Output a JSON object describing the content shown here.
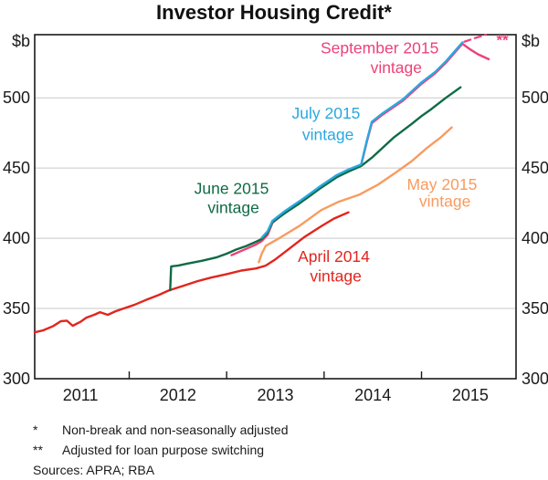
{
  "title": "Investor Housing Credit*",
  "chart_data": {
    "type": "line",
    "title": "Investor Housing Credit*",
    "unit_left": "$b",
    "unit_right": "$b",
    "x_domain": [
      2011.03,
      2015.97
    ],
    "y_domain": [
      300,
      545
    ],
    "y_ticks": [
      300,
      350,
      400,
      450,
      500
    ],
    "x_year_ticks": [
      2012,
      2013,
      2014,
      2015
    ],
    "x_year_labels": [
      "2011",
      "2012",
      "2013",
      "2014",
      "2015"
    ],
    "grid": true,
    "colors": {
      "frame": "#1a1a1a",
      "grid": "#c8c8c8",
      "red": "#e2251d",
      "orange": "#f89b5f",
      "green": "#0f6b45",
      "blue": "#29a8e0",
      "pink": "#ee4178"
    },
    "series": [
      {
        "id": "april-2014-vintage",
        "name": "April 2014 vintage",
        "color": "#e2251d",
        "points": [
          [
            2011.03,
            333
          ],
          [
            2011.12,
            334.5
          ],
          [
            2011.22,
            337.5
          ],
          [
            2011.3,
            341
          ],
          [
            2011.36,
            341.3
          ],
          [
            2011.42,
            337.7
          ],
          [
            2011.5,
            340.5
          ],
          [
            2011.56,
            343.5
          ],
          [
            2011.64,
            345.5
          ],
          [
            2011.7,
            347.4
          ],
          [
            2011.78,
            345.5
          ],
          [
            2011.86,
            348
          ],
          [
            2011.94,
            350
          ],
          [
            2012.05,
            352.5
          ],
          [
            2012.17,
            356
          ],
          [
            2012.3,
            359.5
          ],
          [
            2012.41,
            363
          ],
          [
            2012.55,
            366
          ],
          [
            2012.7,
            369.5
          ],
          [
            2012.84,
            372
          ],
          [
            2013.0,
            374.5
          ],
          [
            2013.15,
            377
          ],
          [
            2013.3,
            378.5
          ],
          [
            2013.4,
            380.5
          ],
          [
            2013.5,
            385
          ],
          [
            2013.65,
            393
          ],
          [
            2013.8,
            401
          ],
          [
            2013.97,
            408.5
          ],
          [
            2014.1,
            414
          ],
          [
            2014.25,
            418.5
          ]
        ]
      },
      {
        "id": "september-2015-vintage",
        "name": "September 2015 vintage",
        "color": "#ee4178",
        "points": [
          [
            2013.05,
            388
          ],
          [
            2013.2,
            392.5
          ],
          [
            2013.3,
            395.5
          ],
          [
            2013.36,
            398
          ],
          [
            2013.42,
            402.5
          ],
          [
            2013.47,
            411
          ],
          [
            2013.6,
            418.5
          ],
          [
            2013.75,
            425.5
          ],
          [
            2013.85,
            430.5
          ],
          [
            2013.97,
            436.5
          ],
          [
            2014.13,
            444
          ],
          [
            2014.25,
            448
          ],
          [
            2014.38,
            452
          ],
          [
            2014.44,
            469
          ],
          [
            2014.49,
            482
          ],
          [
            2014.6,
            488
          ],
          [
            2014.81,
            498
          ],
          [
            2015.0,
            510
          ],
          [
            2015.14,
            517.5
          ],
          [
            2015.25,
            525
          ],
          [
            2015.35,
            533
          ],
          [
            2015.42,
            538.5
          ],
          [
            2015.5,
            534.5
          ],
          [
            2015.58,
            531
          ],
          [
            2015.69,
            527.5
          ]
        ]
      },
      {
        "id": "june-2015-vintage",
        "name": "June 2015 vintage",
        "color": "#0f6b45",
        "points": [
          [
            2012.42,
            363
          ],
          [
            2012.43,
            380
          ],
          [
            2012.5,
            380.5
          ],
          [
            2012.6,
            382
          ],
          [
            2012.75,
            384
          ],
          [
            2012.9,
            386.5
          ],
          [
            2013.0,
            389
          ],
          [
            2013.1,
            392
          ],
          [
            2013.2,
            394.5
          ],
          [
            2013.3,
            397.5
          ],
          [
            2013.36,
            399.5
          ],
          [
            2013.42,
            404
          ],
          [
            2013.47,
            411.5
          ],
          [
            2013.6,
            418
          ],
          [
            2013.75,
            425
          ],
          [
            2013.85,
            430
          ],
          [
            2013.97,
            436
          ],
          [
            2014.13,
            443.5
          ],
          [
            2014.25,
            447.5
          ],
          [
            2014.38,
            451.5
          ],
          [
            2014.5,
            458
          ],
          [
            2014.72,
            472
          ],
          [
            2014.9,
            481.5
          ],
          [
            2015.0,
            487
          ],
          [
            2015.1,
            492
          ],
          [
            2015.25,
            500
          ],
          [
            2015.4,
            507.5
          ]
        ]
      },
      {
        "id": "may-2015-vintage",
        "name": "May 2015 vintage",
        "color": "#f89b5f",
        "points": [
          [
            2013.33,
            383
          ],
          [
            2013.36,
            389
          ],
          [
            2013.4,
            394.5
          ],
          [
            2013.55,
            400.5
          ],
          [
            2013.75,
            409
          ],
          [
            2013.97,
            420
          ],
          [
            2014.15,
            426
          ],
          [
            2014.36,
            431
          ],
          [
            2014.55,
            438
          ],
          [
            2014.72,
            446
          ],
          [
            2014.9,
            455
          ],
          [
            2015.05,
            464
          ],
          [
            2015.2,
            472
          ],
          [
            2015.31,
            479
          ]
        ]
      },
      {
        "id": "july-2015-vintage",
        "name": "July 2015 vintage",
        "color": "#29a8e0",
        "points": [
          [
            2013.36,
            400.5
          ],
          [
            2013.42,
            405
          ],
          [
            2013.47,
            412.5
          ],
          [
            2013.6,
            419.5
          ],
          [
            2013.75,
            426.5
          ],
          [
            2013.85,
            431.5
          ],
          [
            2013.97,
            437.5
          ],
          [
            2014.13,
            445
          ],
          [
            2014.25,
            449
          ],
          [
            2014.38,
            452.5
          ],
          [
            2014.44,
            470
          ],
          [
            2014.49,
            483
          ],
          [
            2014.6,
            489
          ],
          [
            2014.81,
            499
          ],
          [
            2015.0,
            511
          ],
          [
            2015.14,
            518.5
          ],
          [
            2015.25,
            526
          ],
          [
            2015.35,
            534
          ],
          [
            2015.42,
            539.5
          ]
        ]
      },
      {
        "id": "september-2015-adjusted",
        "name": "September 2015 vintage (adjusted for loan purpose switching)",
        "color": "#ee4178",
        "dash": "7 5",
        "width": 2.2,
        "points": [
          [
            2015.44,
            540
          ],
          [
            2015.55,
            542.6
          ],
          [
            2015.66,
            545
          ]
        ]
      }
    ],
    "annotations": [
      {
        "id": "september-2015",
        "color": "#ee4178",
        "size": 17.5,
        "lines": [
          {
            "text": "September 2015",
            "year": 2014.57,
            "value": 535.5
          },
          {
            "text": "vintage",
            "year": 2014.74,
            "value": 521.5
          }
        ]
      },
      {
        "id": "july-2015",
        "color": "#29a8e0",
        "size": 17.5,
        "lines": [
          {
            "text": "July 2015",
            "year": 2014.02,
            "value": 489
          },
          {
            "text": "vintage",
            "year": 2014.04,
            "value": 474
          }
        ]
      },
      {
        "id": "june-2015",
        "color": "#0f6b45",
        "size": 17.5,
        "lines": [
          {
            "text": "June 2015",
            "year": 2013.05,
            "value": 435.5
          },
          {
            "text": "vintage",
            "year": 2013.07,
            "value": 422
          }
        ]
      },
      {
        "id": "may-2015",
        "color": "#f89b5f",
        "size": 17.5,
        "lines": [
          {
            "text": "May 2015",
            "year": 2015.21,
            "value": 438.5
          },
          {
            "text": "vintage",
            "year": 2015.24,
            "value": 426.5
          }
        ]
      },
      {
        "id": "april-2014",
        "color": "#e2251d",
        "size": 17.5,
        "lines": [
          {
            "text": "April 2014",
            "year": 2014.1,
            "value": 387
          },
          {
            "text": "vintage",
            "year": 2014.12,
            "value": 373
          }
        ]
      },
      {
        "id": "double-asterisk",
        "color": "#ee4178",
        "size": 17,
        "bold": true,
        "lines": [
          {
            "text": "**",
            "year": 2015.83,
            "value": 541.5
          }
        ]
      }
    ]
  },
  "footnotes": {
    "items": [
      {
        "marker": "*",
        "text": "Non-break and non-seasonally adjusted"
      },
      {
        "marker": "**",
        "text": "Adjusted for loan purpose switching"
      }
    ],
    "sources": "Sources:  APRA; RBA"
  }
}
